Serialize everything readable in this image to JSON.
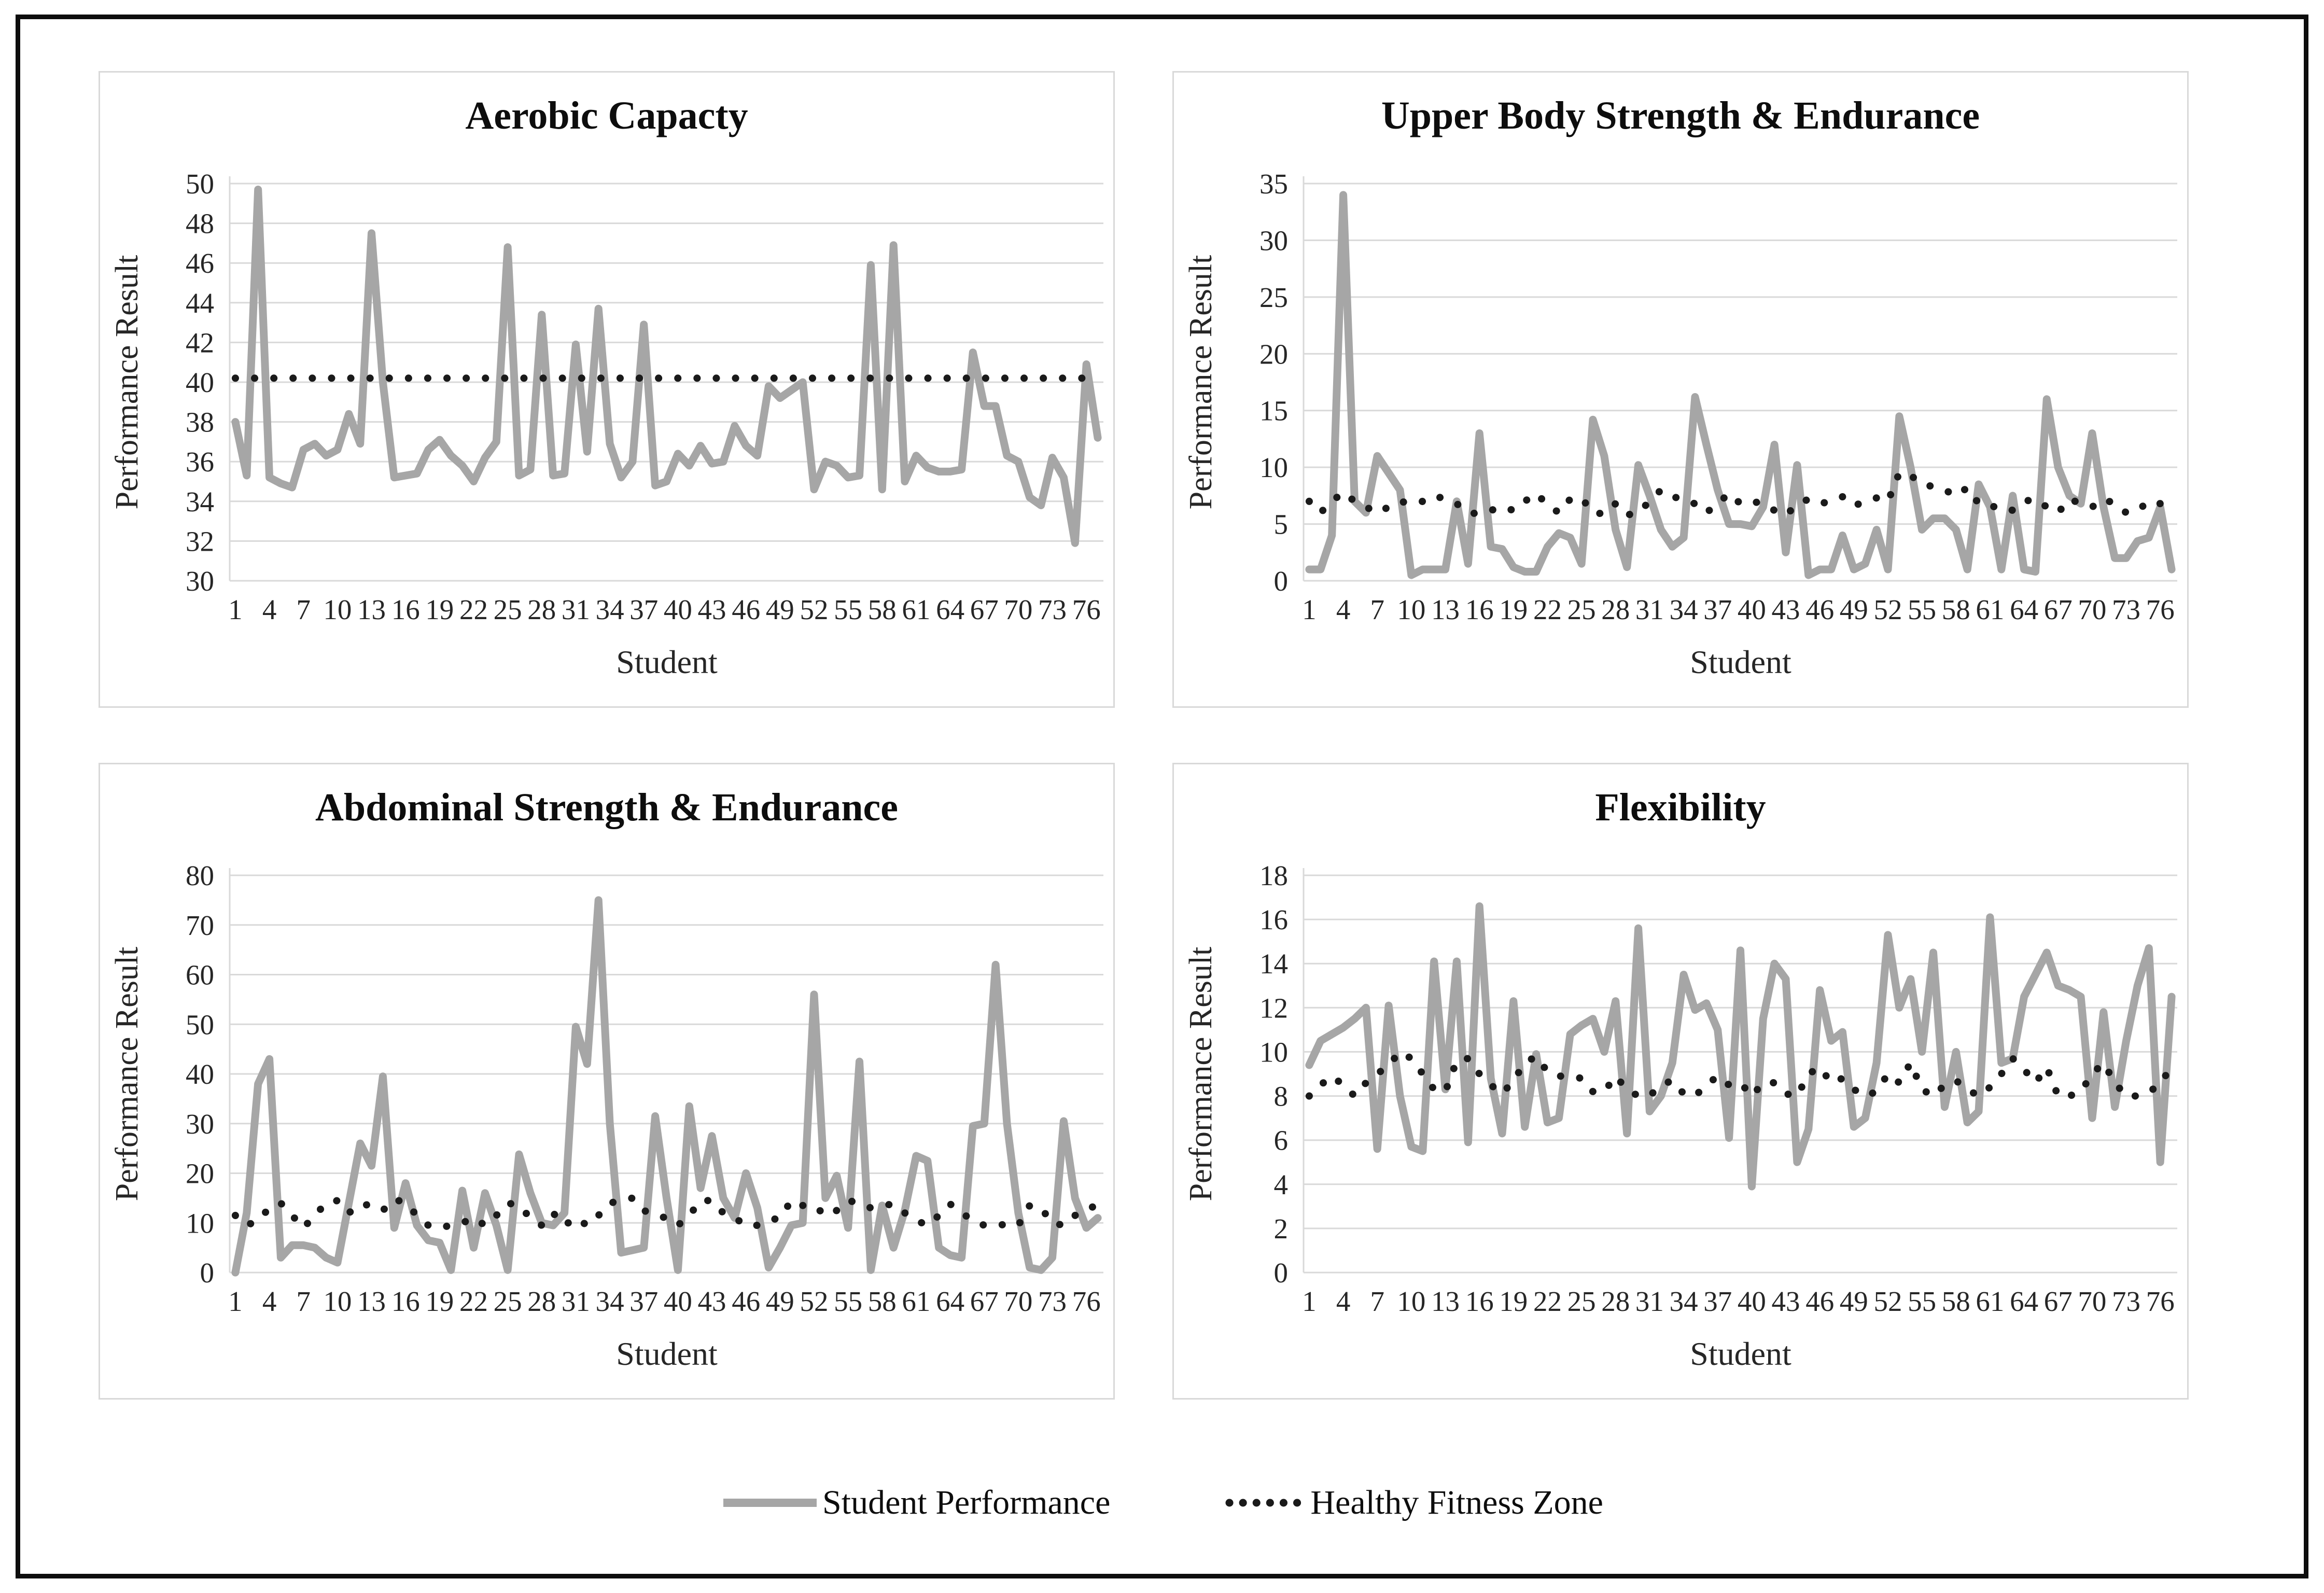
{
  "page": {
    "background": "#ffffff",
    "frame_border_color": "#0d0d0d",
    "panel_border_color": "#d9d9d9"
  },
  "legend": {
    "items": [
      {
        "label": "Student Performance",
        "swatch": "thick-gray-line",
        "color": "#a6a6a6"
      },
      {
        "label": "Healthy Fitness Zone",
        "swatch": "dotted-black-line",
        "color": "#1a1a1a"
      }
    ]
  },
  "chart_data": {
    "type": "line",
    "xlabel": "Student",
    "ylabel": "Performance Result",
    "x_count": 77,
    "x_tick_labels": [
      1,
      4,
      7,
      10,
      13,
      16,
      19,
      22,
      25,
      28,
      31,
      34,
      37,
      40,
      43,
      46,
      49,
      52,
      55,
      58,
      61,
      64,
      67,
      70,
      73,
      76
    ],
    "grid": true,
    "legend_position": "bottom",
    "styles": {
      "student_performance": {
        "color": "#a6a6a6",
        "width": 15,
        "dash": "solid"
      },
      "healthy_fitness_zone": {
        "color": "#1a1a1a",
        "width": 14,
        "dash": "dotted"
      },
      "gridline_color": "#d9d9d9"
    },
    "charts": [
      {
        "title": "Aerobic Capacty",
        "ylim": [
          30,
          50
        ],
        "yticks": [
          30,
          32,
          34,
          36,
          38,
          40,
          42,
          44,
          46,
          48,
          50
        ],
        "series": [
          {
            "name": "Student Performance",
            "style": "solid",
            "values": [
              38.0,
              35.3,
              49.7,
              35.2,
              34.9,
              34.7,
              36.6,
              36.9,
              36.3,
              36.6,
              38.4,
              36.9,
              47.5,
              40.0,
              35.2,
              35.3,
              35.4,
              36.6,
              37.1,
              36.3,
              35.8,
              35.0,
              36.2,
              37.0,
              46.8,
              35.3,
              35.6,
              43.4,
              35.3,
              35.4,
              41.9,
              36.5,
              43.7,
              36.9,
              35.2,
              36.0,
              42.9,
              34.8,
              35.0,
              36.4,
              35.8,
              36.8,
              35.9,
              36.0,
              37.8,
              36.8,
              36.3,
              39.8,
              39.2,
              39.6,
              40.0,
              34.6,
              36.0,
              35.8,
              35.2,
              35.3,
              45.9,
              34.6,
              46.9,
              35.0,
              36.3,
              35.7,
              35.5,
              35.5,
              35.6,
              41.5,
              38.8,
              38.8,
              36.3,
              36.0,
              34.2,
              33.8,
              36.2,
              35.2,
              31.9,
              40.9,
              37.2
            ]
          },
          {
            "name": "Healthy Fitness Zone",
            "style": "dotted",
            "constant": 40.2
          }
        ]
      },
      {
        "title": "Upper Body Strength & Endurance",
        "ylim": [
          0,
          35
        ],
        "yticks": [
          0,
          5,
          10,
          15,
          20,
          25,
          30,
          35
        ],
        "series": [
          {
            "name": "Student Performance",
            "style": "solid",
            "values": [
              1,
              1,
              4,
              34,
              7,
              6,
              11,
              9.5,
              8,
              0.5,
              1,
              1,
              1,
              7,
              1.5,
              13,
              3,
              2.8,
              1.2,
              0.8,
              0.8,
              3,
              4.2,
              3.8,
              1.5,
              14.2,
              11,
              4.5,
              1.2,
              10.2,
              7.5,
              4.5,
              3,
              3.8,
              16.2,
              12,
              8,
              5,
              5,
              4.8,
              6.5,
              12,
              2.5,
              10.2,
              0.5,
              1,
              1,
              4,
              1,
              1.5,
              4.5,
              1,
              14.5,
              10,
              4.5,
              5.5,
              5.5,
              4.5,
              1,
              8.5,
              6.5,
              1,
              7.5,
              1,
              0.8,
              16,
              10,
              7.5,
              6.8,
              13,
              6.5,
              2,
              2,
              3.5,
              3.8,
              6.5,
              1
            ]
          },
          {
            "name": "Healthy Fitness Zone",
            "style": "dotted",
            "values": [
              7,
              6,
              7,
              7.8,
              7,
              6.5,
              6,
              6.5,
              7,
              6.8,
              7,
              7.5,
              7.2,
              6.8,
              6,
              5.9,
              6.2,
              6.5,
              6.2,
              7,
              7.7,
              6.7,
              6,
              7.2,
              7.3,
              6,
              5.9,
              6.8,
              5.8,
              6,
              7,
              8,
              7.5,
              7,
              6.8,
              6,
              6.8,
              7.7,
              6.8,
              7,
              6.8,
              6.2,
              5.8,
              6.7,
              7.2,
              6.8,
              7,
              7.4,
              6.6,
              7,
              7.3,
              7,
              9.5,
              9.3,
              8.5,
              8.3,
              8,
              7.5,
              8.2,
              6.8,
              6.5,
              6.6,
              6.2,
              7,
              7.2,
              6.5,
              6,
              7.2,
              6.8,
              6.5,
              7.2,
              6.8,
              6,
              6.2,
              7,
              6.8,
              7
            ]
          }
        ]
      },
      {
        "title": "Abdominal Strength & Endurance",
        "ylim": [
          0,
          80
        ],
        "yticks": [
          0,
          10,
          20,
          30,
          40,
          50,
          60,
          70,
          80
        ],
        "series": [
          {
            "name": "Student Performance",
            "style": "solid",
            "values": [
              0,
              12,
              38,
              43,
              3,
              5.5,
              5.5,
              5,
              3,
              2,
              14,
              26,
              21.5,
              39.5,
              9,
              18,
              9.5,
              6.5,
              6,
              0.5,
              16.5,
              5,
              16,
              9.5,
              0.5,
              23.8,
              16,
              10,
              9.5,
              12,
              49.5,
              42,
              75,
              30,
              4,
              4.5,
              5,
              31.5,
              15,
              0.5,
              33.5,
              17,
              27.5,
              15,
              11,
              20,
              13,
              1,
              5,
              9.5,
              10,
              56,
              15,
              19.5,
              9,
              42.5,
              0.5,
              13.5,
              5,
              12.5,
              23.5,
              22.5,
              5,
              3.5,
              3,
              29.5,
              30,
              62,
              30,
              12,
              1,
              0.5,
              3,
              30.5,
              15,
              9,
              11
            ]
          },
          {
            "name": "Healthy Fitness Zone",
            "style": "dotted",
            "values": [
              11.5,
              9.5,
              10.5,
              13,
              14,
              11.5,
              9,
              11.5,
              14,
              14.5,
              12,
              13.8,
              13.5,
              12.5,
              14.8,
              14,
              11.5,
              9.5,
              9,
              9.5,
              10,
              11,
              9.5,
              11.5,
              14,
              13.5,
              11,
              9.5,
              12,
              9.5,
              11,
              9.5,
              11.5,
              14,
              14.5,
              15,
              12.5,
              11.5,
              11,
              9.5,
              11.5,
              14.5,
              14.5,
              12,
              11,
              9.5,
              9.5,
              10.5,
              11,
              14.5,
              13.5,
              13.5,
              11.5,
              12.5,
              14.5,
              14,
              13,
              13.5,
              13.8,
              12,
              10.5,
              9.5,
              11.5,
              13.8,
              12,
              10.5,
              9.5,
              9.8,
              9.5,
              9.5,
              13.5,
              13,
              10,
              9.5,
              11.5,
              12.5,
              13.8
            ]
          }
        ]
      },
      {
        "title": "Flexibility",
        "ylim": [
          0,
          18
        ],
        "yticks": [
          0,
          2,
          4,
          6,
          8,
          10,
          12,
          14,
          16,
          18
        ],
        "series": [
          {
            "name": "Student Performance",
            "style": "solid",
            "values": [
              9.4,
              10.5,
              10.8,
              11.1,
              11.5,
              12.0,
              5.6,
              12.1,
              8.0,
              5.7,
              5.5,
              14.1,
              8.3,
              14.1,
              5.9,
              16.6,
              8.8,
              6.3,
              12.3,
              6.6,
              9.9,
              6.8,
              7.0,
              10.8,
              11.2,
              11.5,
              10.0,
              12.3,
              6.3,
              15.6,
              7.3,
              8.0,
              9.5,
              13.5,
              11.9,
              12.2,
              11.0,
              6.1,
              14.6,
              3.9,
              11.5,
              14.0,
              13.3,
              5.0,
              6.5,
              12.8,
              10.5,
              10.9,
              6.6,
              7.0,
              9.5,
              15.3,
              12.0,
              13.3,
              10.0,
              14.5,
              7.5,
              10.0,
              6.8,
              7.3,
              16.1,
              9.5,
              9.7,
              12.5,
              13.5,
              14.5,
              13.0,
              12.8,
              12.5,
              7.0,
              11.8,
              7.5,
              10.5,
              13.0,
              14.7,
              5.0,
              12.5
            ]
          },
          {
            "name": "Healthy Fitness Zone",
            "style": "dotted",
            "values": [
              8.0,
              8.5,
              8.9,
              8.5,
              8.0,
              8.6,
              9.0,
              9.4,
              10.0,
              9.7,
              9.0,
              8.3,
              8.2,
              9.6,
              9.7,
              9.0,
              8.5,
              8.1,
              8.7,
              9.5,
              9.8,
              9.1,
              8.9,
              8.9,
              8.8,
              8.2,
              8.2,
              8.9,
              8.3,
              8.0,
              8.0,
              8.5,
              8.7,
              8.1,
              8.0,
              8.5,
              8.9,
              8.5,
              8.6,
              8.0,
              8.6,
              8.6,
              8.1,
              8.0,
              9.0,
              9.3,
              8.6,
              8.8,
              8.3,
              8.0,
              8.2,
              9.0,
              8.6,
              9.5,
              8.3,
              8.0,
              8.5,
              8.7,
              8.3,
              8.0,
              8.4,
              9.0,
              9.7,
              9.2,
              8.6,
              9.3,
              8.0,
              8.0,
              8.2,
              9.0,
              9.5,
              8.6,
              8.0,
              8.0,
              8.2,
              8.5,
              9.4
            ]
          }
        ]
      }
    ]
  }
}
